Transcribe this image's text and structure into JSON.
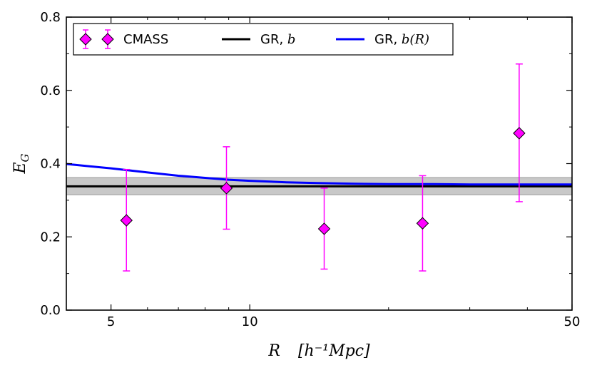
{
  "chart_data": {
    "type": "scatter",
    "title": "",
    "xlabel_var": "R",
    "xlabel_units": "[h⁻¹Mpc]",
    "ylabel": "E",
    "ylabel_sub": "G",
    "xscale": "log",
    "xlim": [
      4,
      50
    ],
    "ylim": [
      0.0,
      0.8
    ],
    "xticks": [
      5,
      10,
      50
    ],
    "xtick_labels": [
      "5",
      "10",
      "50"
    ],
    "yticks": [
      0.0,
      0.2,
      0.4,
      0.6,
      0.8
    ],
    "ytick_labels": [
      "0.0",
      "0.2",
      "0.4",
      "0.6",
      "0.8"
    ],
    "legend_position": "top-left",
    "series": [
      {
        "name": "CMASS",
        "kind": "errorbar",
        "color": "#ff00ff",
        "points": [
          {
            "x": 5.4,
            "y": 0.245,
            "ylo": 0.107,
            "yhi": 0.384
          },
          {
            "x": 8.9,
            "y": 0.333,
            "ylo": 0.221,
            "yhi": 0.446
          },
          {
            "x": 14.5,
            "y": 0.222,
            "ylo": 0.112,
            "yhi": 0.333
          },
          {
            "x": 23.7,
            "y": 0.237,
            "ylo": 0.107,
            "yhi": 0.367
          },
          {
            "x": 38.4,
            "y": 0.483,
            "ylo": 0.296,
            "yhi": 0.672
          }
        ]
      },
      {
        "name": "GR, ",
        "math": "b",
        "kind": "hline",
        "color": "#000000",
        "y": 0.338,
        "band": [
          0.315,
          0.362
        ],
        "band_color": "#c8c8c8"
      },
      {
        "name": "GR, ",
        "math": "b(R)",
        "kind": "line",
        "color": "#0000ff",
        "x": [
          4.0,
          5.0,
          6.0,
          7.0,
          8.0,
          9.0,
          10.0,
          12.0,
          14.0,
          17.0,
          20.0,
          25.0,
          30.0,
          40.0,
          50.0
        ],
        "y": [
          0.399,
          0.387,
          0.376,
          0.367,
          0.361,
          0.356,
          0.353,
          0.349,
          0.347,
          0.345,
          0.344,
          0.344,
          0.343,
          0.343,
          0.343
        ]
      }
    ]
  }
}
